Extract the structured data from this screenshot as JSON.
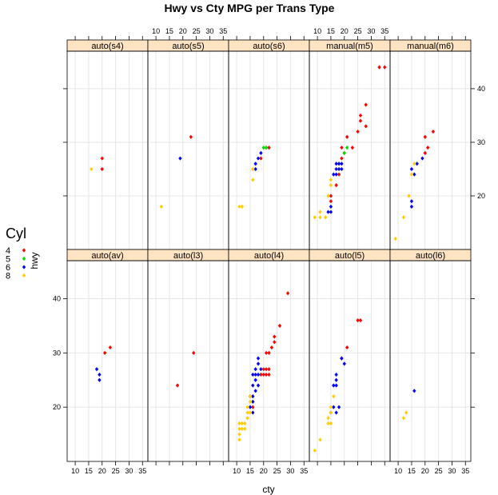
{
  "chart_data": {
    "type": "scatter",
    "title": "Hwy vs Cty MPG per Trans Type",
    "xlabel": "cty",
    "ylabel": "hwy",
    "xlim": [
      7,
      37
    ],
    "ylim": [
      10,
      47
    ],
    "x_ticks": [
      10,
      15,
      20,
      25,
      30,
      35
    ],
    "y_ticks": [
      20,
      30,
      40
    ],
    "grid": true,
    "strip_color": "#ffe4c4",
    "legend": {
      "title": "Cyl",
      "position": "left",
      "entries": [
        {
          "label": "4",
          "color": "#ff0000"
        },
        {
          "label": "5",
          "color": "#00dd00"
        },
        {
          "label": "6",
          "color": "#0000ff"
        },
        {
          "label": "8",
          "color": "#ffcc00"
        }
      ]
    },
    "panels": [
      {
        "name": "auto(s4)",
        "points": [
          {
            "x": 20,
            "y": 27,
            "cyl": "4"
          },
          {
            "x": 20,
            "y": 25,
            "cyl": "4"
          },
          {
            "x": 16,
            "y": 25,
            "cyl": "8"
          }
        ]
      },
      {
        "name": "auto(s5)",
        "points": [
          {
            "x": 23,
            "y": 31,
            "cyl": "4"
          },
          {
            "x": 19,
            "y": 27,
            "cyl": "6"
          },
          {
            "x": 12,
            "y": 18,
            "cyl": "8"
          }
        ]
      },
      {
        "name": "auto(s6)",
        "points": [
          {
            "x": 22,
            "y": 29,
            "cyl": "4"
          },
          {
            "x": 21,
            "y": 29,
            "cyl": "4"
          },
          {
            "x": 19,
            "y": 27,
            "cyl": "4"
          },
          {
            "x": 20,
            "y": 29,
            "cyl": "5"
          },
          {
            "x": 21,
            "y": 29,
            "cyl": "5"
          },
          {
            "x": 19,
            "y": 28,
            "cyl": "6"
          },
          {
            "x": 18,
            "y": 27,
            "cyl": "6"
          },
          {
            "x": 17,
            "y": 26,
            "cyl": "6"
          },
          {
            "x": 17,
            "y": 25,
            "cyl": "6"
          },
          {
            "x": 16,
            "y": 25,
            "cyl": "8"
          },
          {
            "x": 16,
            "y": 23,
            "cyl": "8"
          },
          {
            "x": 11,
            "y": 18,
            "cyl": "8"
          },
          {
            "x": 12,
            "y": 18,
            "cyl": "8"
          }
        ]
      },
      {
        "name": "manual(m5)",
        "points": [
          {
            "x": 33,
            "y": 44,
            "cyl": "4"
          },
          {
            "x": 35,
            "y": 44,
            "cyl": "4"
          },
          {
            "x": 28,
            "y": 37,
            "cyl": "4"
          },
          {
            "x": 26,
            "y": 35,
            "cyl": "4"
          },
          {
            "x": 26,
            "y": 34,
            "cyl": "4"
          },
          {
            "x": 28,
            "y": 33,
            "cyl": "4"
          },
          {
            "x": 25,
            "y": 32,
            "cyl": "4"
          },
          {
            "x": 21,
            "y": 31,
            "cyl": "4"
          },
          {
            "x": 23,
            "y": 29,
            "cyl": "4"
          },
          {
            "x": 19,
            "y": 29,
            "cyl": "4"
          },
          {
            "x": 20,
            "y": 28,
            "cyl": "4"
          },
          {
            "x": 19,
            "y": 27,
            "cyl": "4"
          },
          {
            "x": 18,
            "y": 26,
            "cyl": "4"
          },
          {
            "x": 18,
            "y": 24,
            "cyl": "4"
          },
          {
            "x": 17,
            "y": 22,
            "cyl": "4"
          },
          {
            "x": 15,
            "y": 20,
            "cyl": "4"
          },
          {
            "x": 15,
            "y": 19,
            "cyl": "4"
          },
          {
            "x": 20,
            "y": 28,
            "cyl": "5"
          },
          {
            "x": 21,
            "y": 29,
            "cyl": "5"
          },
          {
            "x": 17,
            "y": 26,
            "cyl": "6"
          },
          {
            "x": 18,
            "y": 26,
            "cyl": "6"
          },
          {
            "x": 19,
            "y": 26,
            "cyl": "6"
          },
          {
            "x": 17,
            "y": 25,
            "cyl": "6"
          },
          {
            "x": 18,
            "y": 25,
            "cyl": "6"
          },
          {
            "x": 19,
            "y": 25,
            "cyl": "6"
          },
          {
            "x": 16,
            "y": 24,
            "cyl": "6"
          },
          {
            "x": 17,
            "y": 24,
            "cyl": "6"
          },
          {
            "x": 15,
            "y": 18,
            "cyl": "6"
          },
          {
            "x": 14,
            "y": 17,
            "cyl": "6"
          },
          {
            "x": 15,
            "y": 17,
            "cyl": "6"
          },
          {
            "x": 15,
            "y": 23,
            "cyl": "8"
          },
          {
            "x": 15,
            "y": 22,
            "cyl": "8"
          },
          {
            "x": 14,
            "y": 20,
            "cyl": "8"
          },
          {
            "x": 11,
            "y": 17,
            "cyl": "8"
          },
          {
            "x": 11,
            "y": 16,
            "cyl": "8"
          },
          {
            "x": 9,
            "y": 16,
            "cyl": "8"
          },
          {
            "x": 13,
            "y": 16,
            "cyl": "8"
          }
        ]
      },
      {
        "name": "manual(m6)",
        "points": [
          {
            "x": 23,
            "y": 32,
            "cyl": "4"
          },
          {
            "x": 20,
            "y": 31,
            "cyl": "4"
          },
          {
            "x": 21,
            "y": 29,
            "cyl": "4"
          },
          {
            "x": 20,
            "y": 28,
            "cyl": "4"
          },
          {
            "x": 19,
            "y": 27,
            "cyl": "6"
          },
          {
            "x": 17,
            "y": 26,
            "cyl": "6"
          },
          {
            "x": 15,
            "y": 25,
            "cyl": "6"
          },
          {
            "x": 16,
            "y": 24,
            "cyl": "6"
          },
          {
            "x": 15,
            "y": 19,
            "cyl": "6"
          },
          {
            "x": 15,
            "y": 18,
            "cyl": "6"
          },
          {
            "x": 16,
            "y": 26,
            "cyl": "8"
          },
          {
            "x": 15,
            "y": 24,
            "cyl": "8"
          },
          {
            "x": 14,
            "y": 20,
            "cyl": "8"
          },
          {
            "x": 12,
            "y": 16,
            "cyl": "8"
          },
          {
            "x": 9,
            "y": 12,
            "cyl": "8"
          }
        ]
      },
      {
        "name": "auto(av)",
        "points": [
          {
            "x": 23,
            "y": 31,
            "cyl": "4"
          },
          {
            "x": 21,
            "y": 30,
            "cyl": "4"
          },
          {
            "x": 18,
            "y": 27,
            "cyl": "6"
          },
          {
            "x": 19,
            "y": 26,
            "cyl": "6"
          },
          {
            "x": 19,
            "y": 25,
            "cyl": "6"
          }
        ]
      },
      {
        "name": "auto(l3)",
        "points": [
          {
            "x": 24,
            "y": 30,
            "cyl": "4"
          },
          {
            "x": 18,
            "y": 24,
            "cyl": "4"
          }
        ]
      },
      {
        "name": "auto(l4)",
        "points": [
          {
            "x": 29,
            "y": 41,
            "cyl": "4"
          },
          {
            "x": 26,
            "y": 35,
            "cyl": "4"
          },
          {
            "x": 24,
            "y": 33,
            "cyl": "4"
          },
          {
            "x": 24,
            "y": 32,
            "cyl": "4"
          },
          {
            "x": 23,
            "y": 31,
            "cyl": "4"
          },
          {
            "x": 22,
            "y": 30,
            "cyl": "4"
          },
          {
            "x": 21,
            "y": 30,
            "cyl": "4"
          },
          {
            "x": 20,
            "y": 27,
            "cyl": "4"
          },
          {
            "x": 21,
            "y": 27,
            "cyl": "4"
          },
          {
            "x": 22,
            "y": 27,
            "cyl": "4"
          },
          {
            "x": 19,
            "y": 26,
            "cyl": "4"
          },
          {
            "x": 20,
            "y": 26,
            "cyl": "4"
          },
          {
            "x": 21,
            "y": 26,
            "cyl": "4"
          },
          {
            "x": 22,
            "y": 26,
            "cyl": "4"
          },
          {
            "x": 16,
            "y": 20,
            "cyl": "4"
          },
          {
            "x": 18,
            "y": 29,
            "cyl": "6"
          },
          {
            "x": 18,
            "y": 28,
            "cyl": "6"
          },
          {
            "x": 17,
            "y": 27,
            "cyl": "6"
          },
          {
            "x": 19,
            "y": 27,
            "cyl": "6"
          },
          {
            "x": 16,
            "y": 26,
            "cyl": "6"
          },
          {
            "x": 17,
            "y": 26,
            "cyl": "6"
          },
          {
            "x": 18,
            "y": 26,
            "cyl": "6"
          },
          {
            "x": 17,
            "y": 25,
            "cyl": "6"
          },
          {
            "x": 16,
            "y": 24,
            "cyl": "6"
          },
          {
            "x": 18,
            "y": 24,
            "cyl": "6"
          },
          {
            "x": 17,
            "y": 23,
            "cyl": "6"
          },
          {
            "x": 15,
            "y": 22,
            "cyl": "6"
          },
          {
            "x": 16,
            "y": 22,
            "cyl": "6"
          },
          {
            "x": 16,
            "y": 21,
            "cyl": "6"
          },
          {
            "x": 15,
            "y": 20,
            "cyl": "6"
          },
          {
            "x": 16,
            "y": 19,
            "cyl": "6"
          },
          {
            "x": 15,
            "y": 22,
            "cyl": "8"
          },
          {
            "x": 15,
            "y": 21,
            "cyl": "8"
          },
          {
            "x": 14,
            "y": 20,
            "cyl": "8"
          },
          {
            "x": 15,
            "y": 19,
            "cyl": "8"
          },
          {
            "x": 14,
            "y": 19,
            "cyl": "8"
          },
          {
            "x": 14,
            "y": 18,
            "cyl": "8"
          },
          {
            "x": 13,
            "y": 17,
            "cyl": "8"
          },
          {
            "x": 12,
            "y": 17,
            "cyl": "8"
          },
          {
            "x": 11,
            "y": 17,
            "cyl": "8"
          },
          {
            "x": 13,
            "y": 16,
            "cyl": "8"
          },
          {
            "x": 12,
            "y": 16,
            "cyl": "8"
          },
          {
            "x": 11,
            "y": 16,
            "cyl": "8"
          },
          {
            "x": 11,
            "y": 15,
            "cyl": "8"
          },
          {
            "x": 11,
            "y": 14,
            "cyl": "8"
          }
        ]
      },
      {
        "name": "auto(l5)",
        "points": [
          {
            "x": 25,
            "y": 36,
            "cyl": "4"
          },
          {
            "x": 26,
            "y": 36,
            "cyl": "4"
          },
          {
            "x": 21,
            "y": 31,
            "cyl": "4"
          },
          {
            "x": 19,
            "y": 29,
            "cyl": "4"
          },
          {
            "x": 19,
            "y": 29,
            "cyl": "6"
          },
          {
            "x": 20,
            "y": 28,
            "cyl": "6"
          },
          {
            "x": 17,
            "y": 26,
            "cyl": "6"
          },
          {
            "x": 17,
            "y": 25,
            "cyl": "6"
          },
          {
            "x": 16,
            "y": 24,
            "cyl": "6"
          },
          {
            "x": 17,
            "y": 24,
            "cyl": "6"
          },
          {
            "x": 18,
            "y": 20,
            "cyl": "6"
          },
          {
            "x": 16,
            "y": 20,
            "cyl": "6"
          },
          {
            "x": 15,
            "y": 19,
            "cyl": "6"
          },
          {
            "x": 17,
            "y": 19,
            "cyl": "6"
          },
          {
            "x": 16,
            "y": 22,
            "cyl": "8"
          },
          {
            "x": 15,
            "y": 20,
            "cyl": "8"
          },
          {
            "x": 15,
            "y": 19,
            "cyl": "8"
          },
          {
            "x": 14,
            "y": 18,
            "cyl": "8"
          },
          {
            "x": 14,
            "y": 17,
            "cyl": "8"
          },
          {
            "x": 15,
            "y": 17,
            "cyl": "8"
          },
          {
            "x": 11,
            "y": 14,
            "cyl": "8"
          },
          {
            "x": 9,
            "y": 12,
            "cyl": "8"
          }
        ]
      },
      {
        "name": "auto(l6)",
        "points": [
          {
            "x": 16,
            "y": 23,
            "cyl": "6"
          },
          {
            "x": 13,
            "y": 19,
            "cyl": "8"
          },
          {
            "x": 12,
            "y": 18,
            "cyl": "8"
          }
        ]
      }
    ]
  }
}
